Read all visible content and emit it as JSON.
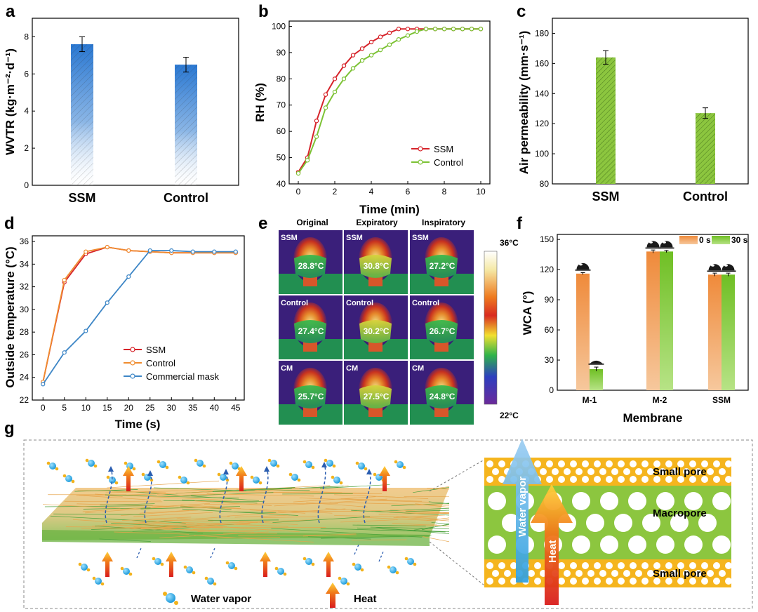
{
  "panel_labels": {
    "a": "a",
    "b": "b",
    "c": "c",
    "d": "d",
    "e": "e",
    "f": "f",
    "g": "g"
  },
  "colors": {
    "blue": "#2d7fd6",
    "red": "#d6232a",
    "green": "#7cc234",
    "orange": "#f08c2e",
    "steel": "#3d86c6"
  },
  "chart_data": [
    {
      "id": "a",
      "type": "bar",
      "categories": [
        "SSM",
        "Control"
      ],
      "values": [
        7.6,
        6.5
      ],
      "errors": [
        0.4,
        0.4
      ],
      "ylabel": "WVTR (kg·m⁻²·d⁻¹)",
      "ylim": [
        0,
        9
      ],
      "yticks": [
        0,
        2,
        4,
        6,
        8
      ]
    },
    {
      "id": "b",
      "type": "line",
      "xlabel": "Time (min)",
      "ylabel": "RH (%)",
      "xlim": [
        -0.5,
        10.5
      ],
      "ylim": [
        40,
        102
      ],
      "xticks": [
        0,
        2,
        4,
        6,
        8,
        10
      ],
      "yticks": [
        40,
        50,
        60,
        70,
        80,
        90,
        100
      ],
      "x": [
        0,
        0.5,
        1,
        1.5,
        2,
        2.5,
        3,
        3.5,
        4,
        4.5,
        5,
        5.5,
        6,
        6.5,
        7,
        7.5,
        8,
        8.5,
        9,
        9.5,
        10
      ],
      "series": [
        {
          "name": "SSM",
          "values": [
            44.5,
            50,
            64,
            74,
            80,
            85,
            89,
            91.5,
            94,
            96,
            97.5,
            99,
            99,
            99,
            99,
            99,
            99,
            99,
            99,
            99,
            99
          ]
        },
        {
          "name": "Control",
          "values": [
            44,
            49,
            58,
            69,
            75,
            80,
            84,
            87,
            89,
            91,
            93,
            95,
            96.5,
            98,
            99,
            99,
            99,
            99,
            99,
            99,
            99
          ]
        }
      ]
    },
    {
      "id": "c",
      "type": "bar",
      "categories": [
        "SSM",
        "Control"
      ],
      "values": [
        164,
        127
      ],
      "errors": [
        4.5,
        3.5
      ],
      "ylabel": "Air permeability (mm·s⁻¹)",
      "ylim": [
        80,
        190
      ],
      "yticks": [
        80,
        100,
        120,
        140,
        160,
        180
      ]
    },
    {
      "id": "d",
      "type": "line",
      "xlabel": "Time (s)",
      "ylabel": "Outside temperature (°C)",
      "xlim": [
        -2.5,
        47
      ],
      "ylim": [
        22,
        36.5
      ],
      "xticks": [
        0,
        5,
        10,
        15,
        20,
        25,
        30,
        35,
        40,
        45
      ],
      "yticks": [
        22,
        24,
        26,
        28,
        30,
        32,
        34,
        36
      ],
      "x": [
        0,
        5,
        10,
        15,
        20,
        25,
        30,
        35,
        40,
        45
      ],
      "series": [
        {
          "name": "SSM",
          "values": [
            23.6,
            32.4,
            34.9,
            35.5,
            35.2,
            35.1,
            35.0,
            35.0,
            35.0,
            35.0
          ]
        },
        {
          "name": "Control",
          "values": [
            23.6,
            32.6,
            35.1,
            35.5,
            35.2,
            35.1,
            35.0,
            35.0,
            35.0,
            35.0
          ]
        },
        {
          "name": "Commercial mask",
          "values": [
            23.4,
            26.2,
            28.1,
            30.6,
            32.9,
            35.2,
            35.2,
            35.1,
            35.1,
            35.1
          ]
        }
      ]
    },
    {
      "id": "f",
      "type": "bar",
      "categories": [
        "M-1",
        "M-2",
        "SSM"
      ],
      "series": [
        {
          "name": "0 s",
          "values": [
            116,
            138,
            115
          ],
          "errors": [
            1,
            1.5,
            1.5
          ]
        },
        {
          "name": "30 s",
          "values": [
            21,
            138,
            115
          ],
          "errors": [
            2,
            1,
            1.5
          ]
        }
      ],
      "xlabel": "Membrane",
      "ylabel": "WCA (°)",
      "ylim": [
        0,
        155
      ],
      "yticks": [
        0,
        30,
        60,
        90,
        120,
        150
      ]
    }
  ],
  "thermal": {
    "column_headers": [
      "Original",
      "Expiratory",
      "Inspiratory"
    ],
    "rows": [
      {
        "label": "SSM",
        "temps": [
          "28.8°C",
          "30.8°C",
          "27.2°C"
        ]
      },
      {
        "label": "Control",
        "temps": [
          "27.4°C",
          "30.2°C",
          "26.7°C"
        ]
      },
      {
        "label": "CM",
        "temps": [
          "25.7°C",
          "27.5°C",
          "24.8°C"
        ]
      }
    ],
    "scale_max": "36°C",
    "scale_min": "22°C"
  },
  "schematic": {
    "legend_water": "Water vapor",
    "legend_heat": "Heat",
    "top_layer": "Small pore",
    "middle_layer": "Macropore",
    "bottom_layer": "Small pore",
    "arrow_water": "Water vapor",
    "arrow_heat": "Heat"
  }
}
